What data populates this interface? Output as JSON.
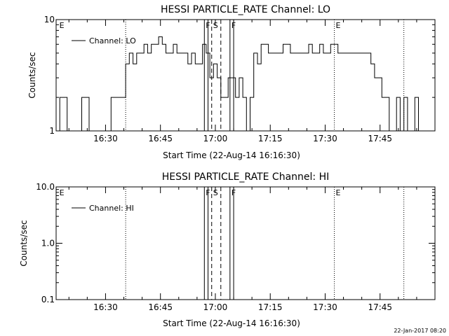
{
  "footer": {
    "timestamp": "22-Jan-2017 08:20"
  },
  "chart_data": [
    {
      "type": "line",
      "title": "HESSI PARTICLE_RATE Channel: LO",
      "xlabel": "Start Time (22-Aug-14 16:16:30)",
      "ylabel": "Counts/sec",
      "yscale": "log",
      "ylim": [
        1,
        10
      ],
      "xlim": [
        "16:16:30",
        "18:00:00"
      ],
      "xtick_labels": [
        "16:30",
        "16:45",
        "17:00",
        "17:15",
        "17:30",
        "17:45"
      ],
      "ytick_labels": [
        "1",
        "10"
      ],
      "legend_placement": "top-left",
      "series": [
        {
          "name": "Channel: LO",
          "color": "#000000",
          "x_minutes": [
            0,
            1,
            2,
            3,
            4,
            5,
            6,
            7,
            8,
            9,
            10,
            11,
            12,
            13,
            14,
            15,
            16,
            17,
            18,
            19,
            20,
            21,
            22,
            23,
            24,
            25,
            26,
            27,
            28,
            29,
            30,
            31,
            32,
            33,
            34,
            35,
            36,
            37,
            38,
            39,
            40,
            41,
            42,
            43,
            44,
            45,
            46,
            47,
            48,
            49,
            50,
            51,
            52,
            53,
            54,
            55,
            56,
            57,
            58,
            59,
            60,
            61,
            62,
            63,
            64,
            65,
            66,
            67,
            68,
            69,
            70,
            71,
            72,
            73,
            74,
            75,
            76,
            77,
            78,
            79,
            80,
            81,
            82,
            83,
            84,
            85,
            86,
            87,
            88,
            89,
            90,
            91,
            92,
            93,
            94,
            95,
            96,
            97,
            98,
            99,
            100,
            101,
            102,
            103
          ],
          "values": [
            1,
            2,
            2,
            1,
            1,
            1,
            1,
            2,
            2,
            1,
            1,
            1,
            1,
            1,
            1,
            2,
            2,
            2,
            2,
            4,
            5,
            4,
            5,
            5,
            6,
            5,
            6,
            6,
            7,
            6,
            5,
            5,
            6,
            5,
            5,
            5,
            4,
            5,
            4,
            4,
            6,
            5,
            3,
            4,
            3,
            2,
            2,
            3,
            3,
            2,
            3,
            2,
            0,
            2,
            5,
            4,
            6,
            6,
            5,
            5,
            5,
            5,
            6,
            6,
            5,
            5,
            5,
            5,
            5,
            6,
            5,
            5,
            6,
            5,
            5,
            6,
            6,
            5,
            5,
            5,
            5,
            5,
            5,
            5,
            5,
            5,
            4,
            3,
            3,
            2,
            2,
            1,
            1,
            2,
            1,
            2,
            1,
            1,
            2,
            1,
            1,
            1,
            1,
            1
          ]
        }
      ],
      "annotations": [
        {
          "x": "16:17:00",
          "label": "E",
          "style": "none"
        },
        {
          "x": "16:35:30",
          "label": "",
          "style": "dotted"
        },
        {
          "x": "16:57:00",
          "label": "F",
          "style": "solid"
        },
        {
          "x": "16:59:00",
          "label": "S",
          "style": "dashed"
        },
        {
          "x": "17:04:00",
          "label": "F",
          "style": "solid"
        },
        {
          "x": "17:32:30",
          "label": "E",
          "style": "dotted"
        },
        {
          "x": "17:51:30",
          "label": "",
          "style": "dotted"
        }
      ]
    },
    {
      "type": "line",
      "title": "HESSI PARTICLE_RATE Channel: HI",
      "xlabel": "Start Time (22-Aug-14 16:16:30)",
      "ylabel": "Counts/sec",
      "yscale": "log",
      "ylim": [
        0.1,
        10
      ],
      "xlim": [
        "16:16:30",
        "18:00:00"
      ],
      "xtick_labels": [
        "16:30",
        "16:45",
        "17:00",
        "17:15",
        "17:30",
        "17:45"
      ],
      "ytick_labels": [
        "0.1",
        "1.0",
        "10.0"
      ],
      "legend_placement": "top-left",
      "series": [
        {
          "name": "Channel: HI",
          "color": "#000000",
          "x_minutes": [],
          "values": []
        }
      ],
      "annotations": [
        {
          "x": "16:17:00",
          "label": "E",
          "style": "none"
        },
        {
          "x": "16:35:30",
          "label": "",
          "style": "dotted"
        },
        {
          "x": "16:57:00",
          "label": "F",
          "style": "solid"
        },
        {
          "x": "16:59:00",
          "label": "S",
          "style": "dashed"
        },
        {
          "x": "17:04:00",
          "label": "F",
          "style": "solid"
        },
        {
          "x": "17:32:30",
          "label": "E",
          "style": "dotted"
        },
        {
          "x": "17:51:30",
          "label": "",
          "style": "dotted"
        }
      ]
    }
  ]
}
